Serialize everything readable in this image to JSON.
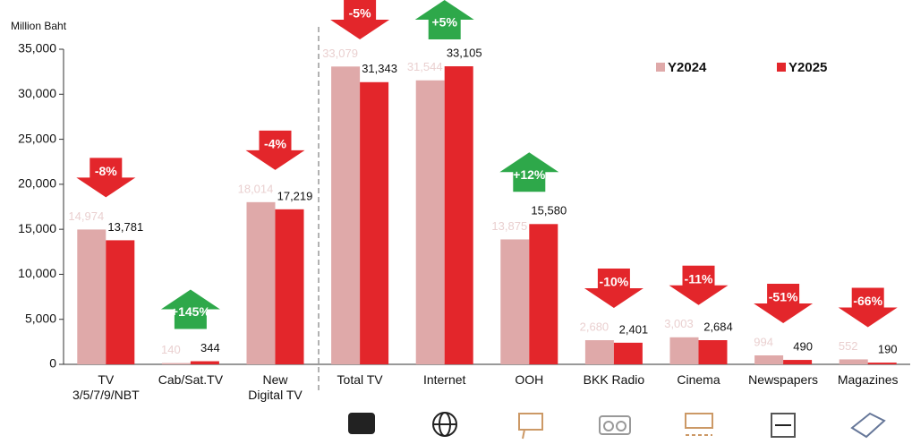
{
  "chart_data": {
    "type": "bar",
    "y_label": "Million Baht",
    "categories": [
      "TV\n3/5/7/9/NBT",
      "Cab/Sat.TV",
      "New\nDigital TV",
      "Total TV",
      "Internet",
      "OOH",
      "BKK Radio",
      "Cinema",
      "Newspapers",
      "Magazines"
    ],
    "series": [
      {
        "name": "Y2024",
        "color": "#dfa9a9",
        "values": [
          14974,
          140,
          18014,
          33079,
          31544,
          13875,
          2680,
          3003,
          994,
          552
        ],
        "value_labels": [
          "14,974",
          "140",
          "18,014",
          "33,079",
          "31,544",
          "13,875",
          "2,680",
          "3,003",
          "994",
          "552"
        ]
      },
      {
        "name": "Y2025",
        "color": "#e3262b",
        "values": [
          13781,
          344,
          17219,
          31343,
          33105,
          15580,
          2401,
          2684,
          490,
          190
        ],
        "value_labels": [
          "13,781",
          "344",
          "17,219",
          "31,343",
          "33,105",
          "15,580",
          "2,401",
          "2,684",
          "490",
          "190"
        ]
      }
    ],
    "changes": [
      "-8%",
      "+145%",
      "-4%",
      "-5%",
      "+5%",
      "+12%",
      "-10%",
      "-11%",
      "-51%",
      "-66%"
    ],
    "ylim": [
      0,
      35000
    ],
    "yticks": [
      {
        "value": 0,
        "label": "0"
      },
      {
        "value": 5000,
        "label": "5,000"
      },
      {
        "value": 10000,
        "label": "10,000"
      },
      {
        "value": 15000,
        "label": "15,000"
      },
      {
        "value": 20000,
        "label": "20,000"
      },
      {
        "value": 25000,
        "label": "25,000"
      },
      {
        "value": 30000,
        "label": "30,000"
      },
      {
        "value": 35000,
        "label": "35,000"
      }
    ],
    "legend": "top-right"
  }
}
